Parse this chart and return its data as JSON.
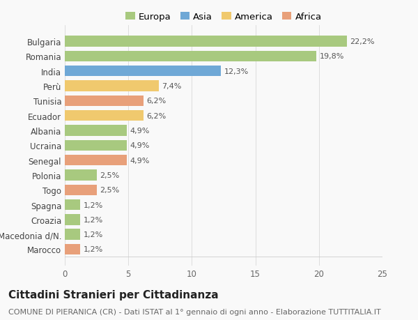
{
  "categories": [
    "Marocco",
    "Macedonia d/N.",
    "Croazia",
    "Spagna",
    "Togo",
    "Polonia",
    "Senegal",
    "Ucraina",
    "Albania",
    "Ecuador",
    "Tunisia",
    "Perù",
    "India",
    "Romania",
    "Bulgaria"
  ],
  "values": [
    1.2,
    1.2,
    1.2,
    1.2,
    2.5,
    2.5,
    4.9,
    4.9,
    4.9,
    6.2,
    6.2,
    7.4,
    12.3,
    19.8,
    22.2
  ],
  "labels": [
    "1,2%",
    "1,2%",
    "1,2%",
    "1,2%",
    "2,5%",
    "2,5%",
    "4,9%",
    "4,9%",
    "4,9%",
    "6,2%",
    "6,2%",
    "7,4%",
    "12,3%",
    "19,8%",
    "22,2%"
  ],
  "continents": [
    "Africa",
    "Europa",
    "Europa",
    "Europa",
    "Africa",
    "Europa",
    "Africa",
    "Europa",
    "Europa",
    "America",
    "Africa",
    "America",
    "Asia",
    "Europa",
    "Europa"
  ],
  "colors": {
    "Europa": "#a8c97f",
    "Asia": "#6fa8d6",
    "America": "#f0c96e",
    "Africa": "#e8a07a"
  },
  "legend_order": [
    "Europa",
    "Asia",
    "America",
    "Africa"
  ],
  "xlim": [
    0,
    25
  ],
  "xticks": [
    0,
    5,
    10,
    15,
    20,
    25
  ],
  "title": "Cittadini Stranieri per Cittadinanza",
  "subtitle": "COMUNE DI PIERANICA (CR) - Dati ISTAT al 1° gennaio di ogni anno - Elaborazione TUTTITALIA.IT",
  "background_color": "#f9f9f9",
  "bar_height": 0.72,
  "title_fontsize": 11,
  "subtitle_fontsize": 8,
  "label_fontsize": 8,
  "ytick_fontsize": 8.5,
  "xtick_fontsize": 8.5,
  "legend_fontsize": 9.5
}
